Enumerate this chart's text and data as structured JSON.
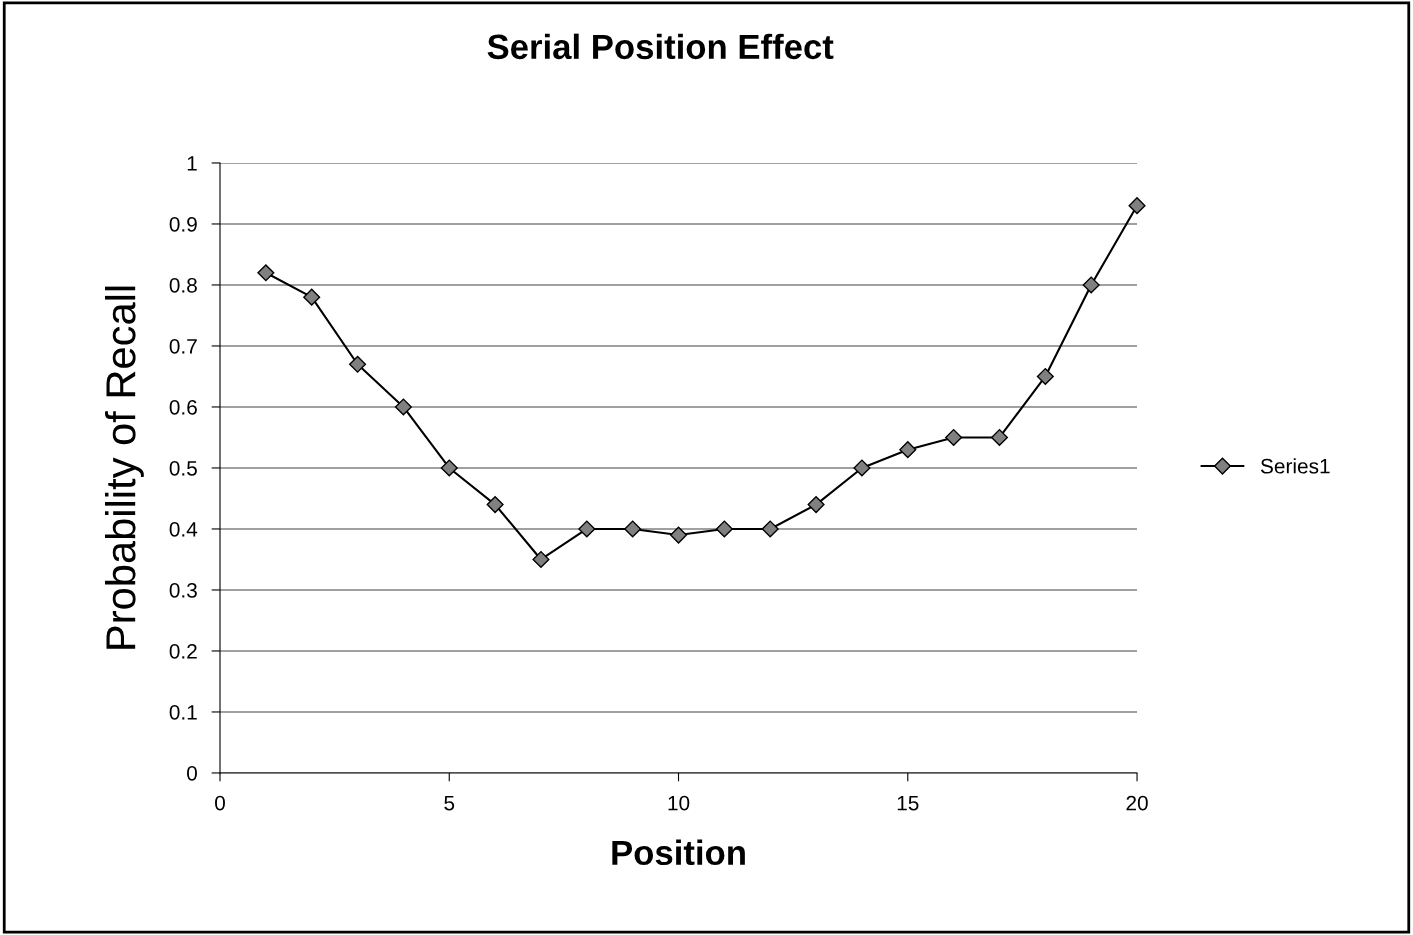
{
  "chart_data": {
    "type": "line",
    "title": "Serial Position Effect",
    "xlabel": "Position",
    "ylabel": "Probability of Recall",
    "series": [
      {
        "name": "Series1",
        "color": "#000000",
        "x": [
          1,
          2,
          3,
          4,
          5,
          6,
          7,
          8,
          9,
          10,
          11,
          12,
          13,
          14,
          15,
          16,
          17,
          18,
          19,
          20
        ],
        "values": [
          0.82,
          0.78,
          0.67,
          0.6,
          0.5,
          0.44,
          0.35,
          0.4,
          0.4,
          0.39,
          0.4,
          0.4,
          0.44,
          0.5,
          0.53,
          0.55,
          0.55,
          0.65,
          0.8,
          0.93
        ]
      }
    ],
    "xlim": [
      0,
      20
    ],
    "xticks": [
      0,
      5,
      10,
      15,
      20
    ],
    "ylim": [
      0,
      1
    ],
    "yticks": [
      0,
      0.1,
      0.2,
      0.3,
      0.4,
      0.5,
      0.6,
      0.7,
      0.8,
      0.9,
      1
    ],
    "grid": "y",
    "legend": "right",
    "marker": "diamond",
    "line_style": "solid"
  }
}
